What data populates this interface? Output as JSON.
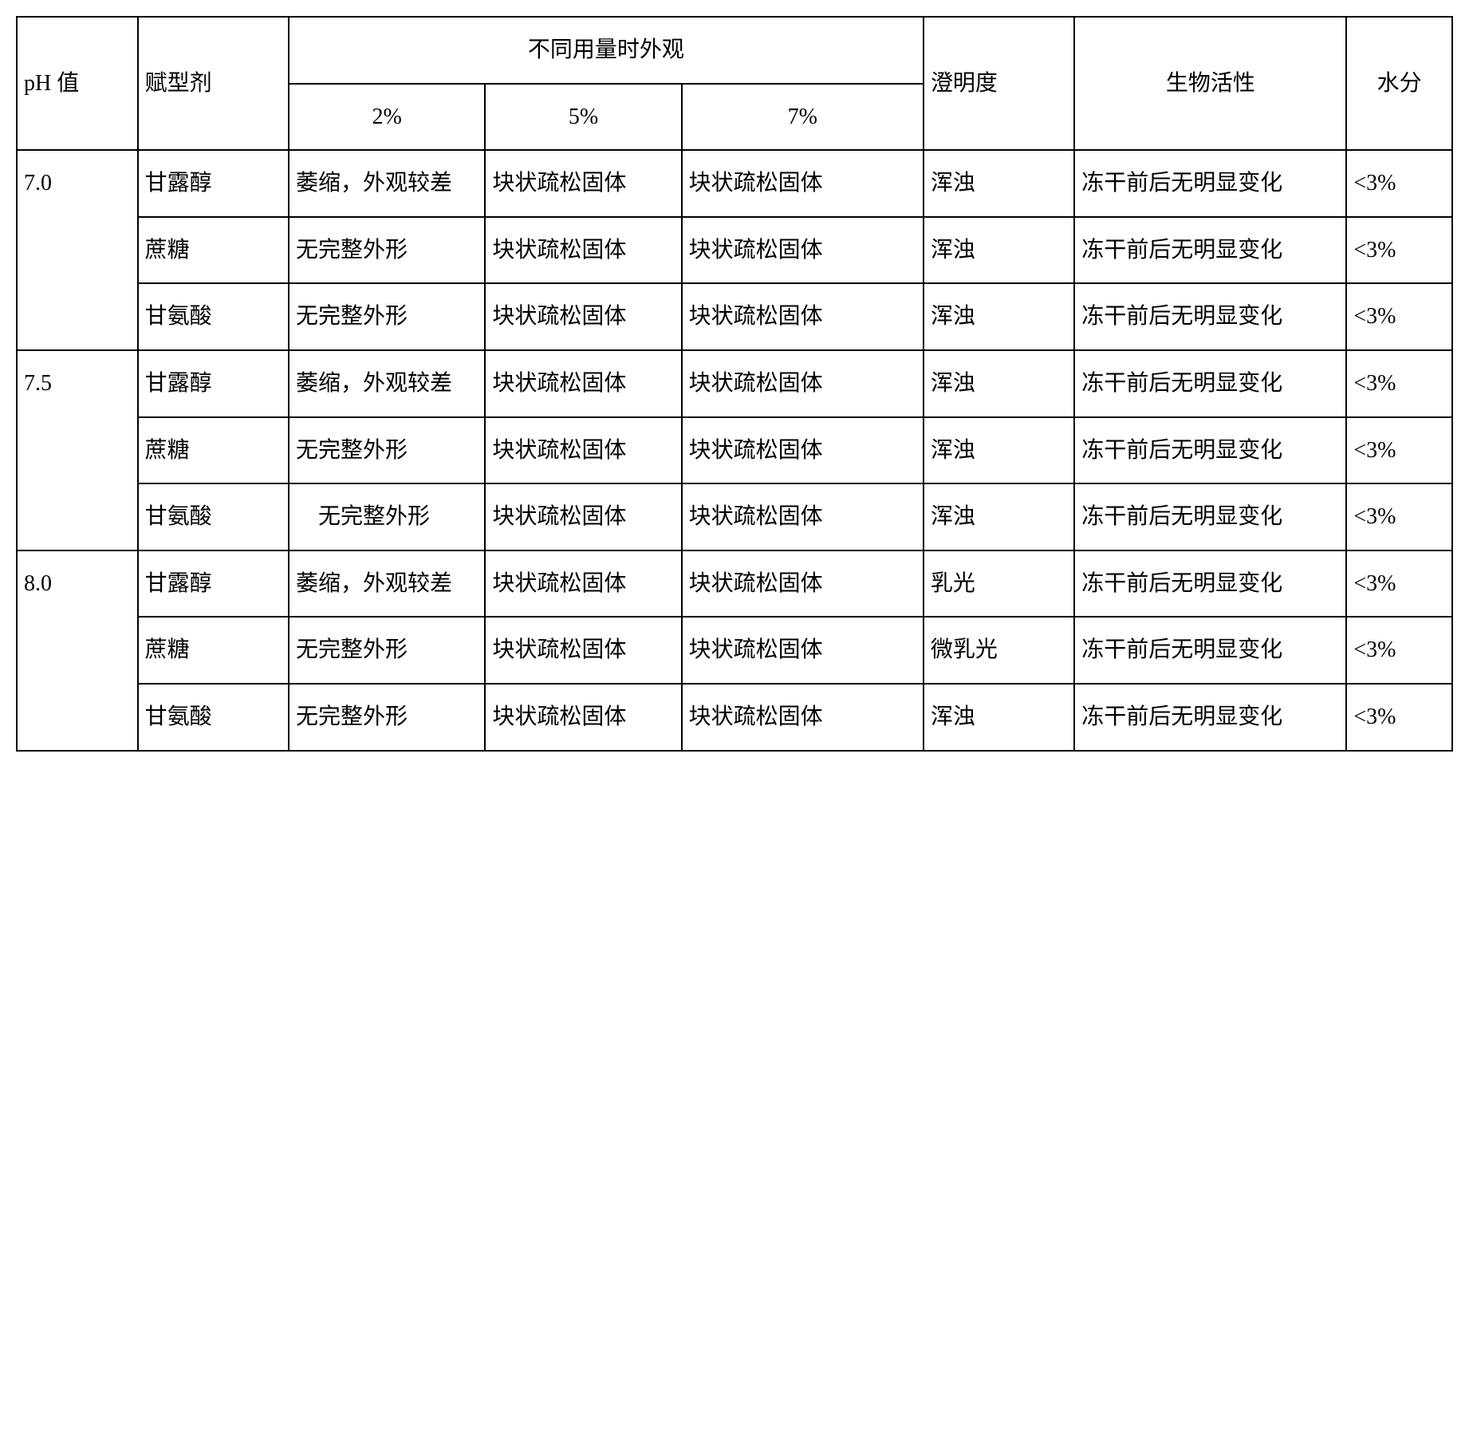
{
  "headers": {
    "ph": "pH 值",
    "excipient": "赋型剂",
    "appearance_group": "不同用量时外观",
    "pct2": "2%",
    "pct5": "5%",
    "pct7": "7%",
    "clarity": "澄明度",
    "bioactivity": "生物活性",
    "water": "水分"
  },
  "rows": [
    {
      "ph": "7.0",
      "ex": "甘露醇",
      "c2": "萎缩，外观较差",
      "c5": "块状疏松固体",
      "c7": "块状疏松固体",
      "cl": "浑浊",
      "bio": "冻干前后无明显变化",
      "w": "<3%"
    },
    {
      "ph": "",
      "ex": "蔗糖",
      "c2": "无完整外形",
      "c5": "块状疏松固体",
      "c7": "块状疏松固体",
      "cl": "浑浊",
      "bio": "冻干前后无明显变化",
      "w": "<3%"
    },
    {
      "ph": "",
      "ex": "甘氨酸",
      "c2": "无完整外形",
      "c5": "块状疏松固体",
      "c7": "块状疏松固体",
      "cl": "浑浊",
      "bio": "冻干前后无明显变化",
      "w": "<3%"
    },
    {
      "ph": "7.5",
      "ex": "甘露醇",
      "c2": "萎缩，外观较差",
      "c5": "块状疏松固体",
      "c7": "块状疏松固体",
      "cl": "浑浊",
      "bio": "冻干前后无明显变化",
      "w": "<3%"
    },
    {
      "ph": "",
      "ex": "蔗糖",
      "c2": "无完整外形",
      "c5": "块状疏松固体",
      "c7": "块状疏松固体",
      "cl": "浑浊",
      "bio": "冻干前后无明显变化",
      "w": "<3%"
    },
    {
      "ph": "",
      "ex": "甘氨酸",
      "c2": "　无完整外形",
      "c5": "块状疏松固体",
      "c7": "块状疏松固体",
      "cl": "浑浊",
      "bio": "冻干前后无明显变化",
      "w": "<3%"
    },
    {
      "ph": "8.0",
      "ex": "甘露醇",
      "c2": "萎缩，外观较差",
      "c5": "块状疏松固体",
      "c7": "块状疏松固体",
      "cl": "乳光",
      "bio": "冻干前后无明显变化",
      "w": "<3%"
    },
    {
      "ph": "",
      "ex": "蔗糖",
      "c2": "无完整外形",
      "c5": "块状疏松固体",
      "c7": "块状疏松固体",
      "cl": "微乳光",
      "bio": "冻干前后无明显变化",
      "w": "<3%"
    },
    {
      "ph": "",
      "ex": "甘氨酸",
      "c2": "无完整外形",
      "c5": "块状疏松固体",
      "c7": "块状疏松固体",
      "cl": "浑浊",
      "bio": "冻干前后无明显变化",
      "w": "<3%"
    }
  ]
}
